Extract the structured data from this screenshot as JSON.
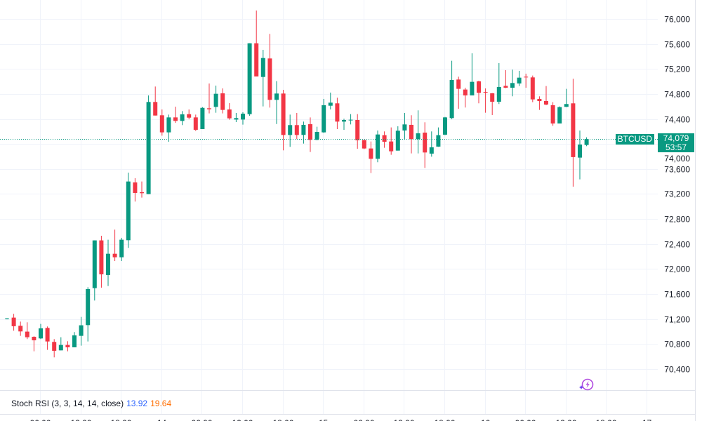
{
  "symbol": "BTCUSD",
  "last_price": "74,079",
  "countdown": "53:57",
  "colors": {
    "up": "#089981",
    "down": "#F23645",
    "k_line": "#2962FF",
    "d_line": "#FF6D00",
    "grid": "#F0F3FA"
  },
  "indicator": {
    "label": "Stoch RSI (3, 3, 14, 14, close)",
    "k": "13.92",
    "d": "19.64"
  },
  "icons": {
    "assistant": "sparkle-lightning-icon"
  },
  "chart_data": {
    "type": "candlestick",
    "interval": "1h",
    "ylim": [
      70200,
      76200
    ],
    "y_ticks": [
      76000,
      75600,
      75200,
      74800,
      74400,
      74000,
      73600,
      73200,
      72800,
      72400,
      72000,
      71600,
      71200,
      70800,
      70400
    ],
    "y_tick_labels": [
      "76,000",
      "75,600",
      "75,200",
      "74,800",
      "74,400",
      "74,000",
      "73,600",
      "73,200",
      "72,800",
      "72,400",
      "72,000",
      "71,600",
      "71,200",
      "70,800",
      "70,400"
    ],
    "x_tick_labels": [
      "06:00",
      "12:00",
      "18:00",
      "14",
      "06:00",
      "12:00",
      "18:00",
      "15",
      "06:00",
      "12:00",
      "18:00",
      "16",
      "06:00",
      "12:00",
      "18:00",
      "17"
    ],
    "last_price": 74079,
    "ohlc_fields": [
      "open",
      "high",
      "low",
      "close"
    ],
    "candles": [
      [
        71200,
        71215,
        71195,
        71210
      ],
      [
        71223,
        71283,
        71013,
        71085
      ],
      [
        71092,
        71159,
        70931,
        71002
      ],
      [
        70999,
        71148,
        70879,
        70909
      ],
      [
        70916,
        70925,
        70684,
        70860
      ],
      [
        70890,
        71122,
        70879,
        71051
      ],
      [
        71058,
        71081,
        70707,
        70841
      ],
      [
        70834,
        70879,
        70587,
        70692
      ],
      [
        70699,
        70909,
        70699,
        70785
      ],
      [
        70785,
        70845,
        70684,
        70748
      ],
      [
        70748,
        70991,
        70748,
        70939
      ],
      [
        70931,
        71234,
        70774,
        71100
      ],
      [
        71103,
        71709,
        70841,
        71679
      ],
      [
        71694,
        72458,
        71496,
        72458
      ],
      [
        72458,
        72532,
        71702,
        71915
      ],
      [
        71904,
        72469,
        71728,
        72244
      ],
      [
        72244,
        72630,
        72128,
        72188
      ],
      [
        72188,
        72499,
        72128,
        72469
      ],
      [
        72461,
        73542,
        72338,
        73400
      ],
      [
        73385,
        73453,
        73079,
        73217
      ],
      [
        73228,
        73400,
        73142,
        73213
      ],
      [
        73198,
        74777,
        73198,
        74672
      ],
      [
        74672,
        74919,
        74455,
        74455
      ],
      [
        74459,
        74552,
        74133,
        74186
      ],
      [
        74186,
        74470,
        74036,
        74425
      ],
      [
        74425,
        74597,
        74339,
        74369
      ],
      [
        74369,
        74526,
        74302,
        74474
      ],
      [
        74477,
        74552,
        74395,
        74421
      ],
      [
        74425,
        74470,
        74208,
        74227
      ],
      [
        74238,
        74590,
        74238,
        74578
      ],
      [
        74571,
        74967,
        74489,
        74556
      ],
      [
        74593,
        74934,
        74500,
        74803
      ],
      [
        74810,
        74889,
        74489,
        74545
      ],
      [
        74552,
        74653,
        74388,
        74410
      ],
      [
        74391,
        74496,
        74350,
        74414
      ],
      [
        74391,
        74507,
        74309,
        74485
      ],
      [
        74477,
        75611,
        74451,
        75611
      ],
      [
        75611,
        76135,
        75080,
        75080
      ],
      [
        75072,
        75506,
        74601,
        75375
      ],
      [
        75368,
        75761,
        74582,
        74706
      ],
      [
        74706,
        75005,
        74320,
        74807
      ],
      [
        74807,
        74866,
        73898,
        74144
      ],
      [
        74144,
        74470,
        73954,
        74302
      ],
      [
        74302,
        74496,
        74077,
        74144
      ],
      [
        74145,
        74358,
        74006,
        74306
      ],
      [
        74317,
        74425,
        73872,
        74066
      ],
      [
        74066,
        74276,
        74059,
        74193
      ],
      [
        74186,
        74721,
        74178,
        74620
      ],
      [
        74612,
        74822,
        74553,
        74661
      ],
      [
        74650,
        74740,
        74238,
        74358
      ],
      [
        74358,
        74403,
        74227,
        74384
      ],
      [
        74381,
        74478,
        74313,
        74388
      ],
      [
        74384,
        74478,
        73924,
        74059
      ],
      [
        74063,
        74066,
        73917,
        73928
      ],
      [
        73928,
        74040,
        73535,
        73763
      ],
      [
        73763,
        74216,
        73707,
        74152
      ],
      [
        74141,
        74201,
        73939,
        74036
      ],
      [
        74040,
        74265,
        73827,
        73883
      ],
      [
        73894,
        74283,
        73894,
        74212
      ],
      [
        74216,
        74496,
        74077,
        74313
      ],
      [
        74306,
        74459,
        73849,
        74077
      ],
      [
        74077,
        74538,
        73849,
        74171
      ],
      [
        74182,
        74347,
        73617,
        73864
      ],
      [
        73846,
        74201,
        73797,
        73947
      ],
      [
        73958,
        74265,
        73954,
        74141
      ],
      [
        74149,
        74433,
        74141,
        74425
      ],
      [
        74414,
        75331,
        74396,
        75024
      ],
      [
        75031,
        75076,
        74564,
        74882
      ],
      [
        74871,
        74900,
        74583,
        74777
      ],
      [
        74777,
        75450,
        74777,
        74994
      ],
      [
        75002,
        75013,
        74650,
        74818
      ],
      [
        74833,
        74889,
        74500,
        74826
      ],
      [
        74811,
        74814,
        74463,
        74676
      ],
      [
        74676,
        75293,
        74639,
        74912
      ],
      [
        74930,
        75181,
        74893,
        74900
      ],
      [
        74900,
        75189,
        74762,
        74975
      ],
      [
        74968,
        75170,
        74927,
        75061
      ],
      [
        75076,
        75125,
        74900,
        75069
      ],
      [
        75065,
        75095,
        74669,
        74713
      ],
      [
        74721,
        74762,
        74545,
        74687
      ],
      [
        74687,
        74927,
        74620,
        74631
      ],
      [
        74620,
        74669,
        74291,
        74328
      ],
      [
        74328,
        74601,
        74328,
        74590
      ],
      [
        74594,
        74882,
        74590,
        74639
      ],
      [
        74650,
        75043,
        73318,
        73790
      ],
      [
        73782,
        74216,
        73434,
        73991
      ],
      [
        73984,
        74107,
        73965,
        74079
      ]
    ]
  }
}
